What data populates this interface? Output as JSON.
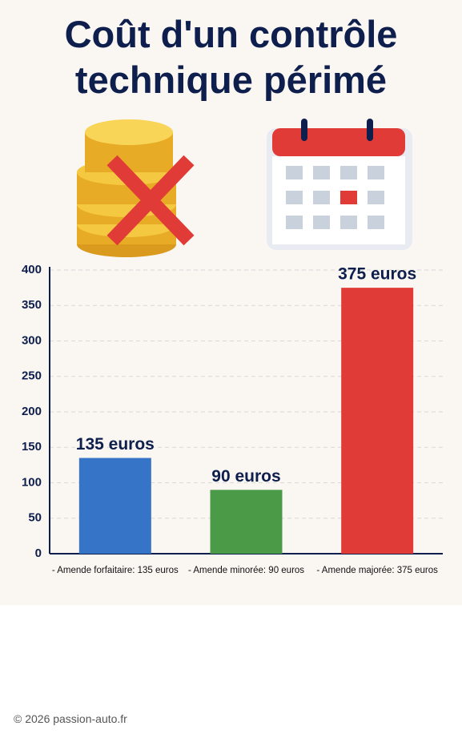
{
  "title": "Coût d'un contrôle technique périmé",
  "footer": "© 2026 passion-auto.fr",
  "chart_data": {
    "type": "bar",
    "categories": [
      "- Amende forfaitaire: 135 euros",
      "- Amende minorée: 90 euros",
      "- Amende majorée: 375 euros"
    ],
    "values": [
      135,
      90,
      375
    ],
    "value_labels": [
      "135 euros",
      "90 euros",
      "375 euros"
    ],
    "colors": [
      "#3674c8",
      "#4a9a48",
      "#e03b36"
    ],
    "ylim": [
      0,
      400
    ],
    "yticks": [
      0,
      50,
      100,
      150,
      200,
      250,
      300,
      350,
      400
    ],
    "grid": true
  }
}
